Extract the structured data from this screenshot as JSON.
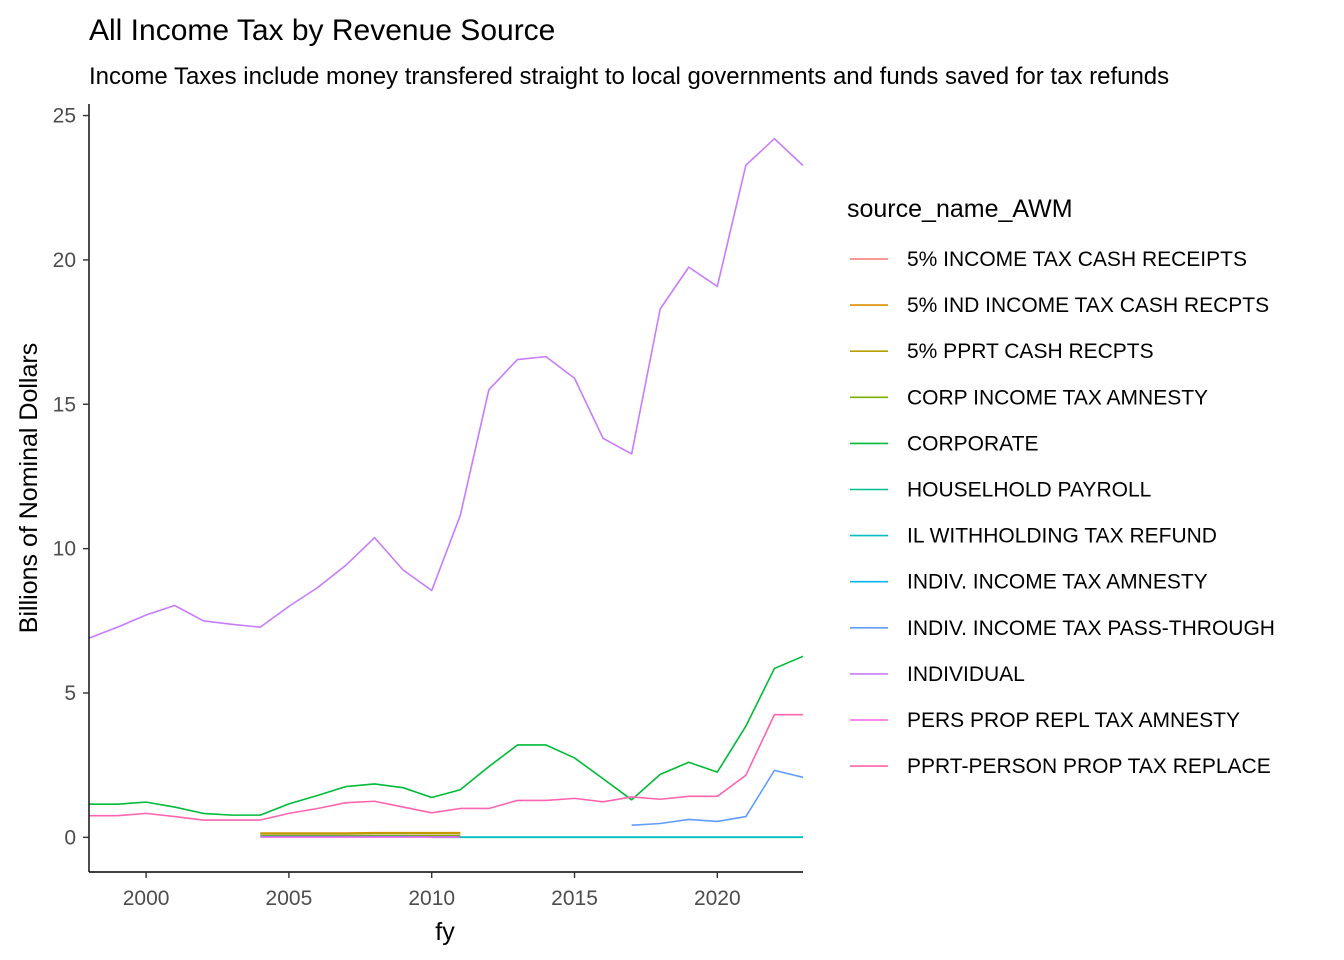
{
  "chart_data": {
    "type": "line",
    "title": "All Income Tax by Revenue Source",
    "subtitle": "Income Taxes include money transfered straight to local governments and funds saved for tax refunds",
    "xlabel": "fy",
    "ylabel": "Billions of Nominal Dollars",
    "xlim": [
      1998,
      2023
    ],
    "ylim": [
      -1.2,
      25.4
    ],
    "xticks": [
      2000,
      2005,
      2010,
      2015,
      2020
    ],
    "yticks": [
      0,
      5,
      10,
      15,
      20,
      25
    ],
    "grid": false,
    "legend": {
      "title": "source_name_AWM",
      "position": "right"
    },
    "series": [
      {
        "name": "5% INCOME TAX CASH RECEIPTS",
        "color": "#F8766D",
        "x": [
          2004,
          2005,
          2006,
          2007,
          2008,
          2009,
          2010,
          2011
        ],
        "y": [
          0.12,
          0.12,
          0.12,
          0.12,
          0.13,
          0.13,
          0.13,
          0.13
        ]
      },
      {
        "name": "5% IND INCOME TAX CASH RECPTS",
        "color": "#DE8C00",
        "x": [
          2004,
          2005,
          2006,
          2007,
          2008,
          2009,
          2010,
          2011
        ],
        "y": [
          0.15,
          0.15,
          0.15,
          0.15,
          0.16,
          0.16,
          0.16,
          0.16
        ]
      },
      {
        "name": "5% PPRT CASH RECPTS",
        "color": "#B79F00",
        "x": [
          2004,
          2005,
          2006,
          2007,
          2008,
          2009,
          2010,
          2011
        ],
        "y": [
          0.13,
          0.13,
          0.13,
          0.13,
          0.14,
          0.14,
          0.14,
          0.14
        ]
      },
      {
        "name": "CORP INCOME TAX AMNESTY",
        "color": "#7CAE00",
        "x": [
          2004,
          2005,
          2006,
          2007,
          2008,
          2009,
          2010,
          2011
        ],
        "y": [
          0.06,
          0.06,
          0.06,
          0.06,
          0.06,
          0.06,
          0.06,
          0.06
        ]
      },
      {
        "name": "CORPORATE",
        "color": "#00BA38",
        "x": [
          1998,
          1999,
          2000,
          2001,
          2002,
          2003,
          2004,
          2005,
          2006,
          2007,
          2008,
          2009,
          2010,
          2011,
          2012,
          2013,
          2014,
          2015,
          2016,
          2017,
          2018,
          2019,
          2020,
          2021,
          2022,
          2023
        ],
        "y": [
          1.15,
          1.15,
          1.22,
          1.05,
          0.83,
          0.77,
          0.77,
          1.16,
          1.45,
          1.76,
          1.85,
          1.72,
          1.38,
          1.65,
          2.45,
          3.2,
          3.2,
          2.75,
          2.03,
          1.3,
          2.18,
          2.6,
          2.26,
          3.85,
          5.85,
          6.27
        ]
      },
      {
        "name": "HOUSELHOLD PAYROLL",
        "color": "#00C08B",
        "x": [
          2010,
          2011,
          2012,
          2013,
          2014,
          2015,
          2016,
          2017,
          2018,
          2019,
          2020,
          2021,
          2022,
          2023
        ],
        "y": [
          0,
          0,
          0,
          0,
          0,
          0,
          0,
          0,
          0,
          0,
          0,
          0,
          0,
          0
        ]
      },
      {
        "name": "IL WITHHOLDING TAX REFUND",
        "color": "#00BFC4",
        "x": [
          2010,
          2011,
          2012,
          2013,
          2014,
          2015,
          2016,
          2017,
          2018,
          2019,
          2020,
          2021,
          2022,
          2023
        ],
        "y": [
          0.01,
          0.01,
          0.01,
          0.01,
          0.01,
          0.01,
          0.01,
          0.01,
          0.01,
          0.01,
          0.01,
          0.01,
          0.01,
          0.01
        ]
      },
      {
        "name": "INDIV. INCOME TAX AMNESTY",
        "color": "#00B4F0",
        "x": [
          2004,
          2005,
          2006,
          2007,
          2008,
          2009,
          2010,
          2011
        ],
        "y": [
          0.03,
          0.03,
          0.03,
          0.03,
          0.03,
          0.03,
          0.02,
          0.02
        ]
      },
      {
        "name": "INDIV. INCOME TAX PASS-THROUGH",
        "color": "#619CFF",
        "x": [
          2017,
          2018,
          2019,
          2020,
          2021,
          2022,
          2023
        ],
        "y": [
          0.42,
          0.48,
          0.62,
          0.55,
          0.72,
          2.32,
          2.08
        ]
      },
      {
        "name": "INDIVIDUAL",
        "color": "#C77CFF",
        "x": [
          1998,
          1999,
          2000,
          2001,
          2002,
          2003,
          2004,
          2005,
          2006,
          2007,
          2008,
          2009,
          2010,
          2011,
          2012,
          2013,
          2014,
          2015,
          2016,
          2017,
          2018,
          2019,
          2020,
          2021,
          2022,
          2023
        ],
        "y": [
          6.9,
          7.28,
          7.7,
          8.03,
          7.5,
          7.38,
          7.28,
          8.0,
          8.65,
          9.43,
          10.38,
          9.26,
          8.55,
          11.15,
          15.5,
          16.55,
          16.65,
          15.9,
          13.82,
          13.28,
          18.3,
          19.75,
          19.08,
          23.28,
          24.2,
          23.27
        ]
      },
      {
        "name": "PERS PROP REPL TAX AMNESTY",
        "color": "#F564E3",
        "x": [
          2004,
          2005,
          2006,
          2007,
          2008,
          2009,
          2010,
          2011
        ],
        "y": [
          0.01,
          0.01,
          0.01,
          0.01,
          0.01,
          0.01,
          0.01,
          0.01
        ]
      },
      {
        "name": "PPRT-PERSON PROP TAX REPLACE",
        "color": "#FF64B0",
        "x": [
          1998,
          1999,
          2000,
          2001,
          2002,
          2003,
          2004,
          2005,
          2006,
          2007,
          2008,
          2009,
          2010,
          2011,
          2012,
          2013,
          2014,
          2015,
          2016,
          2017,
          2018,
          2019,
          2020,
          2021,
          2022,
          2023
        ],
        "y": [
          0.75,
          0.75,
          0.83,
          0.72,
          0.6,
          0.6,
          0.6,
          0.83,
          1.0,
          1.2,
          1.25,
          1.05,
          0.85,
          1.0,
          1.0,
          1.28,
          1.28,
          1.35,
          1.23,
          1.4,
          1.32,
          1.42,
          1.42,
          2.15,
          4.25,
          4.25
        ]
      }
    ]
  }
}
